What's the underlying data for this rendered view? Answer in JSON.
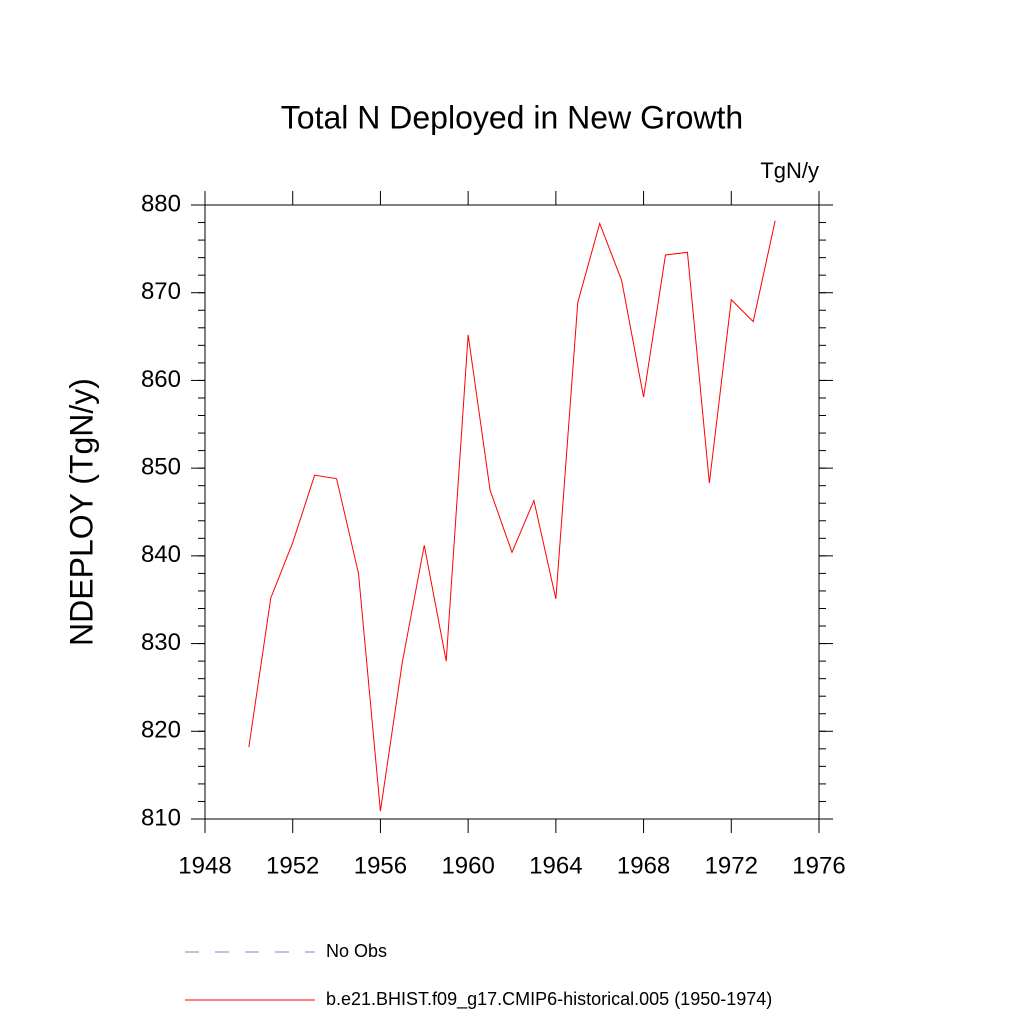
{
  "chart_data": {
    "type": "line",
    "title": "Total N Deployed in New Growth",
    "units": "TgN/y",
    "ylabel": "NDEPLOY  (TgN/y)",
    "x": [
      1950,
      1951,
      1952,
      1953,
      1954,
      1955,
      1956,
      1957,
      1958,
      1959,
      1960,
      1961,
      1962,
      1963,
      1964,
      1965,
      1966,
      1967,
      1968,
      1969,
      1970,
      1971,
      1972,
      1973,
      1974
    ],
    "series": [
      {
        "name": "No Obs",
        "color": "#8080c0",
        "dash": "dashed",
        "values": [
          null,
          null,
          null,
          null,
          null,
          null,
          null,
          null,
          null,
          null,
          null,
          null,
          null,
          null,
          null,
          null,
          null,
          null,
          null,
          null,
          null,
          null,
          null,
          null,
          null
        ]
      },
      {
        "name": "b.e21.BHIST.f09_g17.CMIP6-historical.005 (1950-1974)",
        "color": "#ff0000",
        "dash": "solid",
        "values": [
          818.2,
          835.2,
          841.5,
          849.2,
          848.8,
          838.0,
          810.9,
          827.9,
          841.2,
          828.0,
          865.2,
          847.5,
          840.4,
          846.3,
          835.1,
          868.9,
          877.9,
          871.4,
          858.1,
          874.3,
          874.6,
          848.3,
          869.2,
          866.7,
          878.2
        ]
      }
    ],
    "xlim": [
      1948,
      1976
    ],
    "xticks": [
      1948,
      1952,
      1956,
      1960,
      1964,
      1968,
      1972,
      1976
    ],
    "ylim": [
      810,
      880
    ],
    "yticks": [
      810,
      820,
      830,
      840,
      850,
      860,
      870,
      880
    ],
    "y_minor_step": 2
  }
}
